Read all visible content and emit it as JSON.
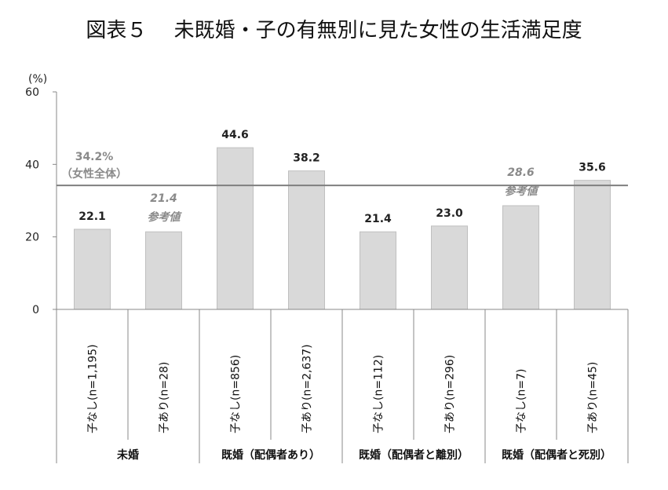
{
  "title": "図表５　 未既婚・子の有無別に見た女性の生活満足度",
  "chart_data": {
    "type": "bar",
    "unit_label": "(%)",
    "ylim": [
      0,
      60
    ],
    "yticks": [
      0,
      20,
      40,
      60
    ],
    "categories": [
      "子なし(n=1,195)",
      "子あり(n=28)",
      "子なし(n=856)",
      "子あり(n=2,637)",
      "子なし(n=112)",
      "子あり(n=296)",
      "子なし(n=7)",
      "子あり(n=45)"
    ],
    "values": [
      22.1,
      21.4,
      44.6,
      38.2,
      21.4,
      23.0,
      28.6,
      35.6
    ],
    "value_labels": [
      "22.1",
      "21.4",
      "44.6",
      "38.2",
      "21.4",
      "23.0",
      "28.6",
      "35.6"
    ],
    "reference_note": "参考値",
    "reference_bars": [
      1,
      6
    ],
    "groups": [
      {
        "label": "未婚",
        "span": [
          0,
          1
        ]
      },
      {
        "label": "既婚（配偶者あり）",
        "span": [
          2,
          3
        ]
      },
      {
        "label": "既婚（配偶者と離別）",
        "span": [
          4,
          5
        ]
      },
      {
        "label": "既婚（配偶者と死別）",
        "span": [
          6,
          7
        ]
      }
    ],
    "average_line": {
      "value": 34.2,
      "label": "34.2%",
      "sublabel": "（女性全体）"
    },
    "colors": {
      "bar": "#d9d9d9",
      "bar_edge": "#bfbfbf",
      "average": "#7f7f7f",
      "reference_text": "#8a8a8a"
    }
  }
}
